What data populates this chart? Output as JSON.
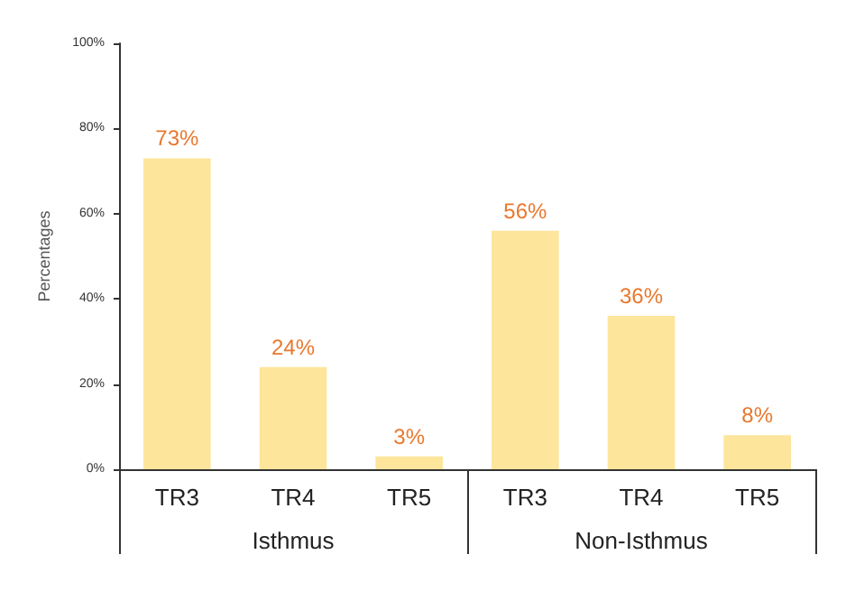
{
  "chart_data": {
    "type": "bar",
    "ylabel": "Percentages",
    "categories": [
      "TR3",
      "TR4",
      "TR5",
      "TR3",
      "TR4",
      "TR5"
    ],
    "values": [
      73,
      24,
      3,
      56,
      36,
      8
    ],
    "value_labels": [
      "73%",
      "24%",
      "3%",
      "56%",
      "36%",
      "8%"
    ],
    "color": "#fde59b",
    "ylim": [
      0,
      100
    ],
    "yticks": [
      {
        "value": 0,
        "label": "0%"
      },
      {
        "value": 20,
        "label": "20%"
      },
      {
        "value": 40,
        "label": "40%"
      },
      {
        "value": 60,
        "label": "60%"
      },
      {
        "value": 80,
        "label": "80%"
      },
      {
        "value": 100,
        "label": "100%"
      }
    ],
    "annotations": [
      "Isthmus",
      "Non-Isthmus"
    ]
  }
}
